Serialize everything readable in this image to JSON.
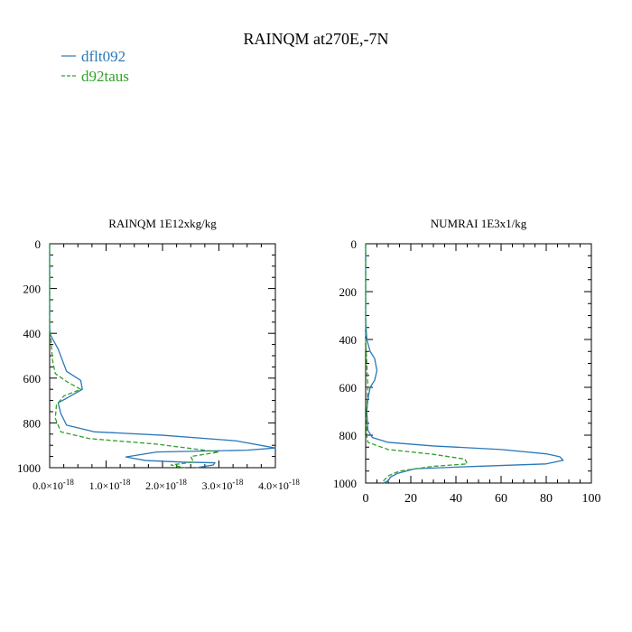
{
  "figure": {
    "title": "RAINQM at270E,-7N",
    "legend": [
      {
        "name": "dflt092",
        "color": "#2a78b8",
        "dash": "solid"
      },
      {
        "name": "d92taus",
        "color": "#33a02c",
        "dash": "dashed"
      }
    ]
  },
  "chart_data": [
    {
      "type": "line",
      "title": "RAINQM  1E12xkg/kg",
      "xlim": [
        0,
        4e-18
      ],
      "ylim": [
        1000,
        0
      ],
      "y_inverted": true,
      "x_ticks": [
        0,
        1e-18,
        2e-18,
        3e-18,
        4e-18
      ],
      "x_tick_labels": [
        {
          "mant": "0.0",
          "exp": "-18"
        },
        {
          "mant": "1.0",
          "exp": "-18"
        },
        {
          "mant": "2.0",
          "exp": "-18"
        },
        {
          "mant": "3.0",
          "exp": "-18"
        },
        {
          "mant": "4.0",
          "exp": "-18"
        }
      ],
      "y_ticks": [
        0,
        200,
        400,
        600,
        800,
        1000
      ],
      "y_tick_labels": [
        "0",
        "200",
        "400",
        "600",
        "800",
        "1000"
      ],
      "grid": false,
      "series": [
        {
          "name": "dflt092",
          "points": [
            [
              0,
              0
            ],
            [
              0,
              380
            ],
            [
              2e-20,
              410
            ],
            [
              1.5e-19,
              470
            ],
            [
              3e-19,
              570
            ],
            [
              5.5e-19,
              610
            ],
            [
              5.8e-19,
              650
            ],
            [
              3e-19,
              690
            ],
            [
              1.5e-19,
              710
            ],
            [
              2e-19,
              760
            ],
            [
              3e-19,
              810
            ],
            [
              8e-19,
              840
            ],
            [
              2e-18,
              855
            ],
            [
              3.3e-18,
              880
            ],
            [
              4e-18,
              912
            ],
            [
              3.5e-18,
              922
            ],
            [
              1.9e-18,
              930
            ],
            [
              1.35e-18,
              952
            ],
            [
              1.7e-18,
              968
            ],
            [
              2.35e-18,
              975
            ],
            [
              2.93e-18,
              978
            ],
            [
              2.9e-18,
              988
            ],
            [
              2.6e-18,
              1000
            ]
          ]
        },
        {
          "name": "d92taus",
          "points": [
            [
              0,
              0
            ],
            [
              0,
              380
            ],
            [
              2e-20,
              420
            ],
            [
              5e-20,
              520
            ],
            [
              1e-19,
              580
            ],
            [
              3e-19,
              615
            ],
            [
              5.5e-19,
              650
            ],
            [
              2.5e-19,
              680
            ],
            [
              1.2e-19,
              720
            ],
            [
              1e-19,
              780
            ],
            [
              2e-19,
              840
            ],
            [
              7e-19,
              870
            ],
            [
              1.9e-18,
              895
            ],
            [
              3e-18,
              930
            ],
            [
              2.5e-18,
              950
            ],
            [
              2.55e-18,
              975
            ],
            [
              2.15e-18,
              988
            ],
            [
              2.4e-18,
              1000
            ]
          ]
        }
      ]
    },
    {
      "type": "line",
      "title": "NUMRAI  1E3x1/kg",
      "xlim": [
        0,
        100
      ],
      "ylim": [
        1000,
        0
      ],
      "y_inverted": true,
      "x_ticks": [
        0,
        20,
        40,
        60,
        80,
        100
      ],
      "x_tick_labels": [
        "0",
        "20",
        "40",
        "60",
        "80",
        "100"
      ],
      "y_ticks": [
        0,
        200,
        400,
        600,
        800,
        1000
      ],
      "y_tick_labels": [
        "0",
        "200",
        "400",
        "600",
        "800",
        "1000"
      ],
      "grid": false,
      "series": [
        {
          "name": "dflt092",
          "points": [
            [
              0,
              0
            ],
            [
              0,
              320
            ],
            [
              0.5,
              400
            ],
            [
              2,
              450
            ],
            [
              4,
              480
            ],
            [
              5,
              530
            ],
            [
              4,
              570
            ],
            [
              2,
              600
            ],
            [
              1,
              650
            ],
            [
              0.5,
              700
            ],
            [
              1,
              780
            ],
            [
              3,
              810
            ],
            [
              10,
              830
            ],
            [
              30,
              845
            ],
            [
              60,
              860
            ],
            [
              80,
              878
            ],
            [
              86,
              890
            ],
            [
              87.5,
              905
            ],
            [
              80,
              920
            ],
            [
              50,
              930
            ],
            [
              22,
              940
            ],
            [
              14,
              960
            ],
            [
              11,
              975
            ],
            [
              10,
              990
            ],
            [
              8,
              1000
            ]
          ]
        },
        {
          "name": "d92taus",
          "points": [
            [
              0,
              0
            ],
            [
              0,
              400
            ],
            [
              0.5,
              500
            ],
            [
              1,
              600
            ],
            [
              0.5,
              700
            ],
            [
              0.5,
              800
            ],
            [
              1,
              830
            ],
            [
              10,
              860
            ],
            [
              30,
              880
            ],
            [
              44,
              900
            ],
            [
              45,
              920
            ],
            [
              30,
              930
            ],
            [
              15,
              950
            ],
            [
              10,
              970
            ],
            [
              8,
              990
            ],
            [
              7,
              1000
            ]
          ]
        }
      ]
    }
  ]
}
